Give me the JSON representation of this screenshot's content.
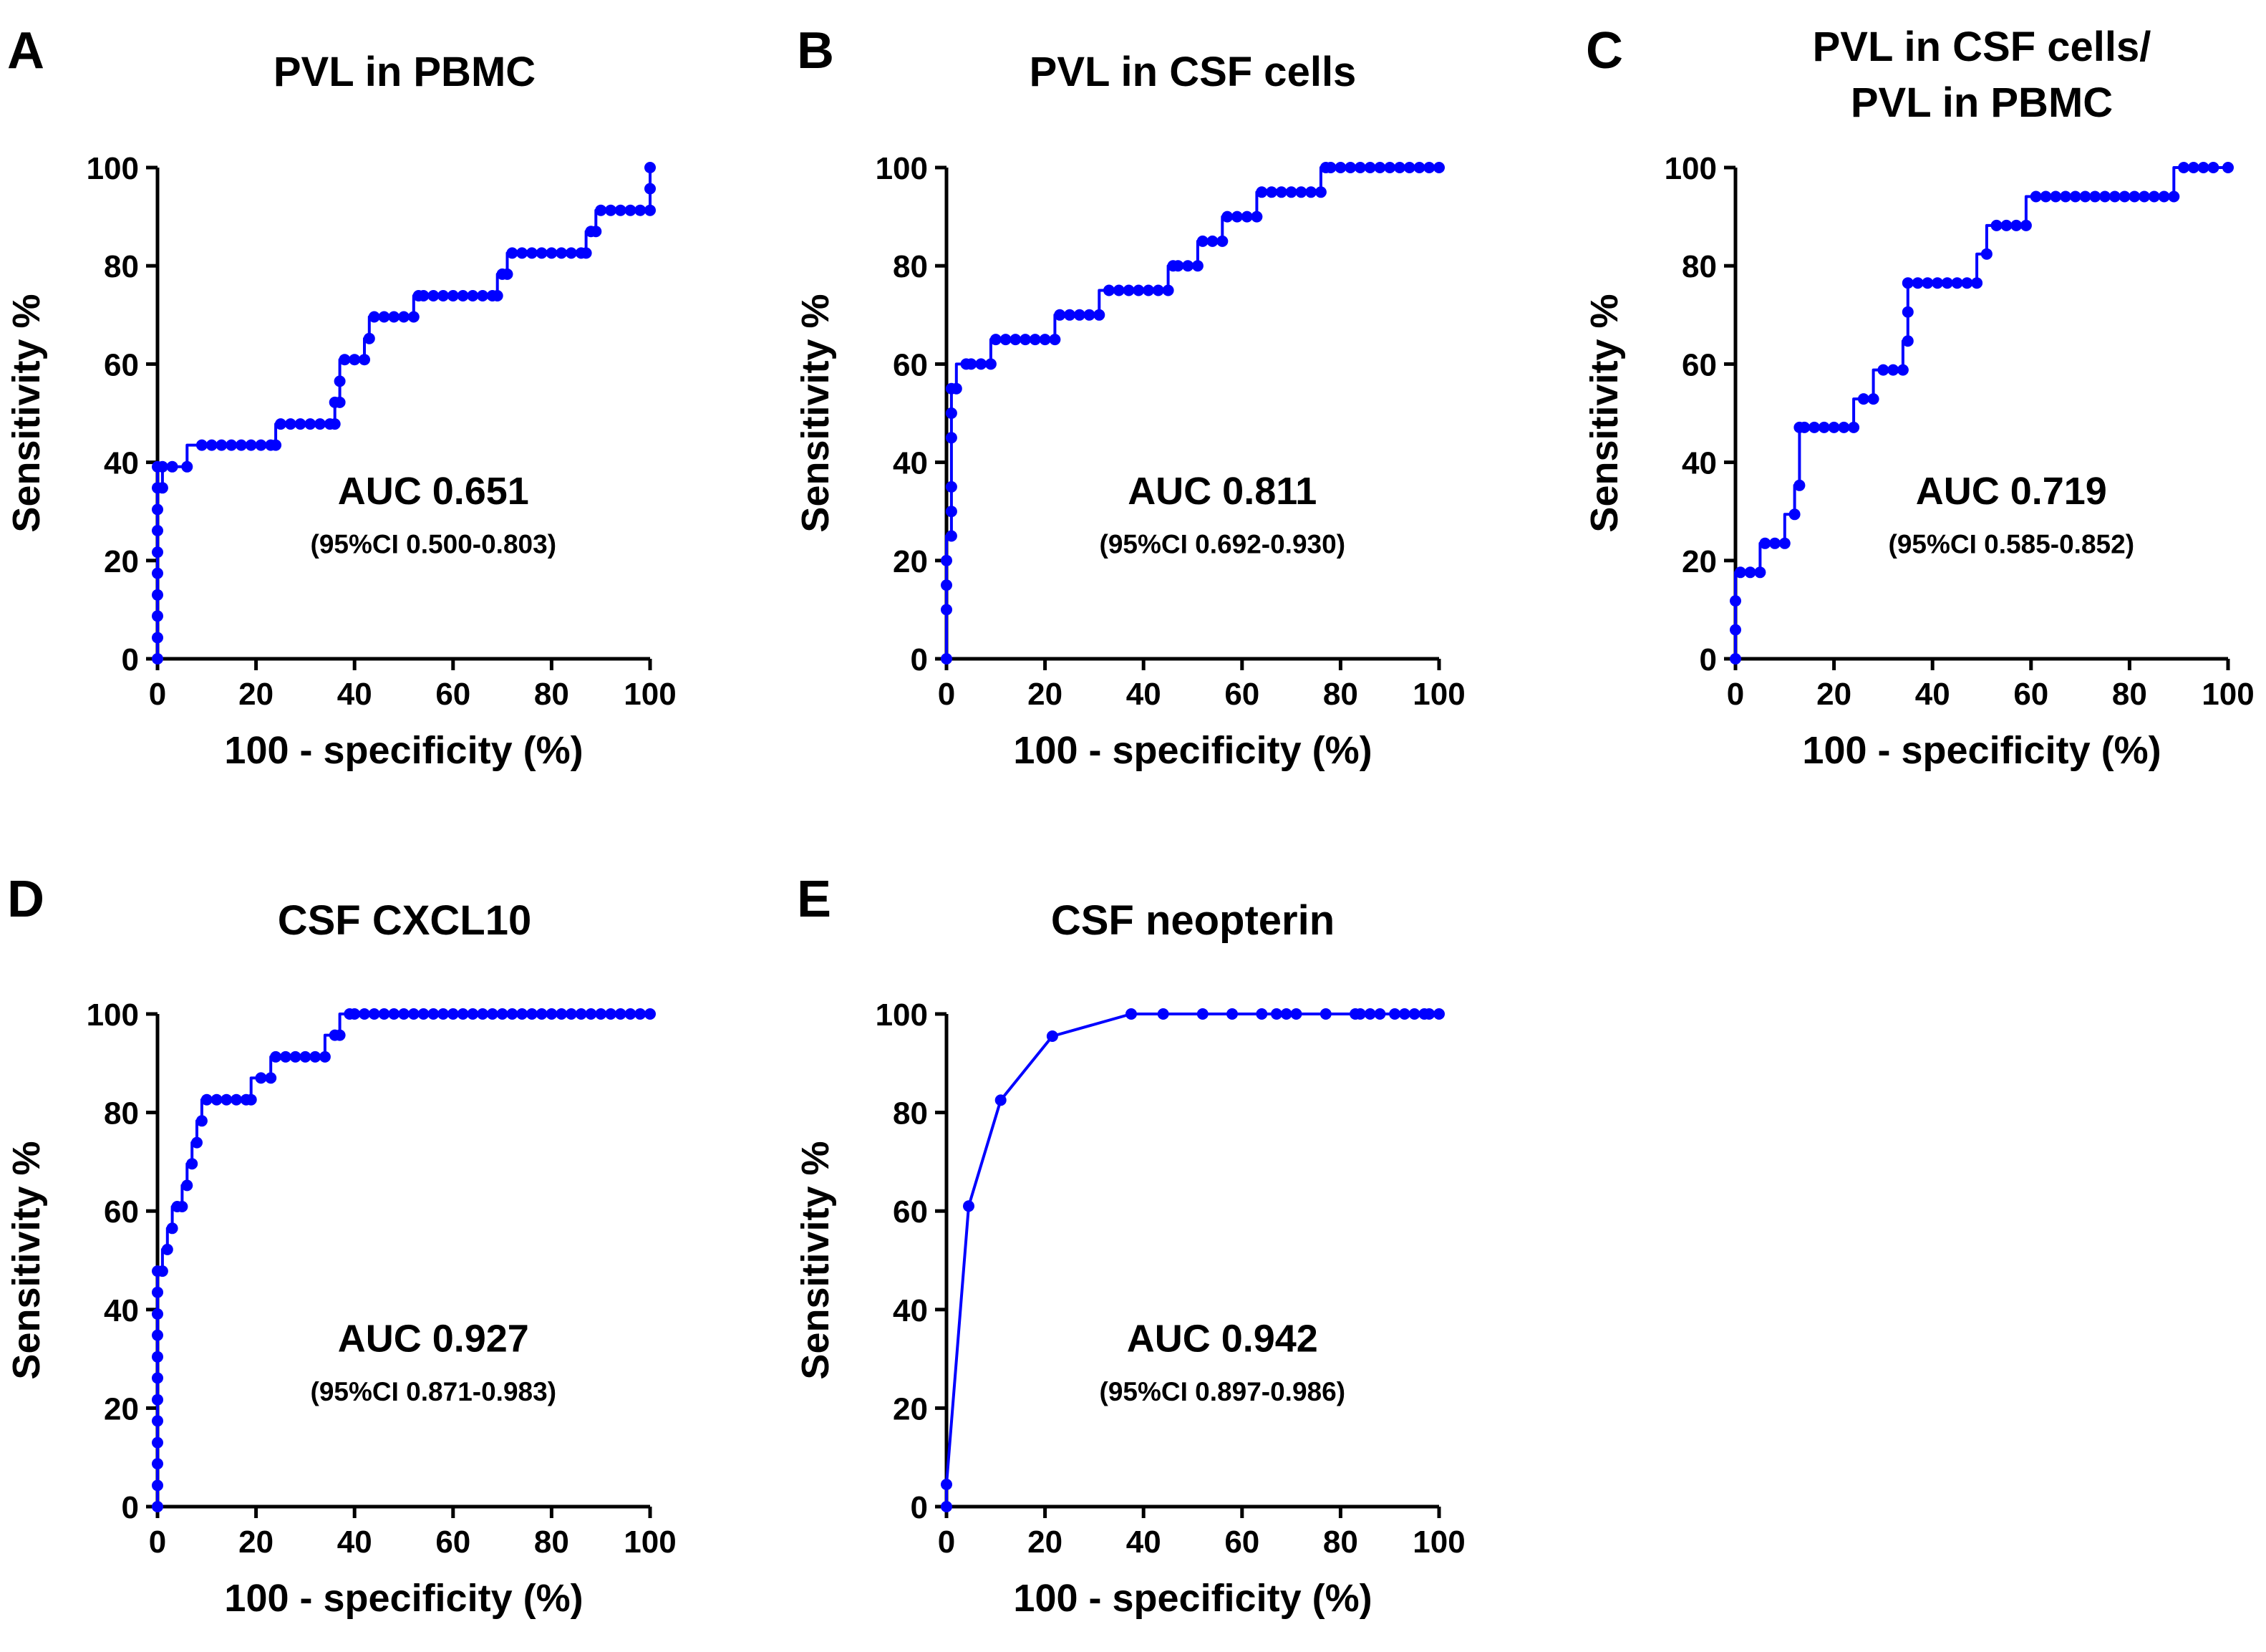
{
  "figure": {
    "series_color": "#0000ff"
  },
  "chart_data": [
    {
      "panel": "A",
      "type": "line",
      "title_lines": [
        "PVL in PBMC"
      ],
      "xlabel": "100 - specificity (%)",
      "ylabel": "Sensitivity %",
      "xlim": [
        0,
        100
      ],
      "ylim": [
        0,
        100
      ],
      "xticks": [
        0,
        20,
        40,
        60,
        80,
        100
      ],
      "yticks": [
        0,
        20,
        40,
        60,
        80,
        100
      ],
      "auc": "AUC 0.651",
      "ci": "(95%CI 0.500-0.803)",
      "series": [
        {
          "name": "ROC",
          "style": "step",
          "x": [
            0,
            0,
            0,
            0,
            0,
            0,
            0,
            0,
            0,
            0,
            1,
            1,
            3,
            6,
            9,
            11,
            13,
            15,
            17,
            19,
            21,
            23,
            24,
            25,
            27,
            29,
            31,
            33,
            35,
            36,
            36,
            37,
            37,
            38,
            40,
            42,
            43,
            44,
            46,
            48,
            50,
            52,
            53,
            54,
            56,
            58,
            60,
            62,
            64,
            66,
            68,
            69,
            70,
            71,
            72,
            74,
            76,
            78,
            80,
            82,
            84,
            86,
            87,
            88,
            89,
            90,
            92,
            94,
            96,
            98,
            100,
            100,
            100
          ],
          "y": [
            0,
            4.3,
            8.7,
            13,
            17.4,
            21.7,
            26.1,
            30.4,
            34.8,
            39.1,
            34.8,
            39.1,
            39.1,
            39.1,
            43.5,
            43.5,
            43.5,
            43.5,
            43.5,
            43.5,
            43.5,
            43.5,
            43.5,
            47.8,
            47.8,
            47.8,
            47.8,
            47.8,
            47.8,
            47.8,
            52.2,
            52.2,
            56.5,
            60.9,
            60.9,
            60.9,
            65.2,
            69.6,
            69.6,
            69.6,
            69.6,
            69.6,
            73.9,
            73.9,
            73.9,
            73.9,
            73.9,
            73.9,
            73.9,
            73.9,
            73.9,
            73.9,
            78.3,
            78.3,
            82.6,
            82.6,
            82.6,
            82.6,
            82.6,
            82.6,
            82.6,
            82.6,
            82.6,
            87,
            87,
            91.3,
            91.3,
            91.3,
            91.3,
            91.3,
            91.3,
            95.7,
            100
          ]
        }
      ]
    },
    {
      "panel": "B",
      "type": "line",
      "title_lines": [
        "PVL in CSF cells"
      ],
      "xlabel": "100 - specificity (%)",
      "ylabel": "Sensitivity %",
      "xlim": [
        0,
        100
      ],
      "ylim": [
        0,
        100
      ],
      "xticks": [
        0,
        20,
        40,
        60,
        80,
        100
      ],
      "yticks": [
        0,
        20,
        40,
        60,
        80,
        100
      ],
      "auc": "AUC 0.811",
      "ci": "(95%CI 0.692-0.930)",
      "series": [
        {
          "name": "ROC",
          "style": "step",
          "x": [
            0,
            0,
            0,
            0,
            1,
            1,
            1,
            1,
            1,
            1,
            2,
            4,
            5,
            7,
            9,
            10,
            12,
            14,
            16,
            18,
            20,
            22,
            23,
            25,
            27,
            29,
            31,
            33,
            35,
            37,
            39,
            41,
            43,
            45,
            46,
            47,
            49,
            51,
            52,
            54,
            56,
            57,
            59,
            61,
            63,
            64,
            66,
            68,
            70,
            72,
            74,
            76,
            77,
            78,
            80,
            82,
            84,
            86,
            88,
            90,
            92,
            94,
            96,
            98,
            100
          ],
          "y": [
            0,
            10,
            15,
            20,
            25,
            30,
            35,
            45,
            50,
            55,
            55,
            60,
            60,
            60,
            60,
            65,
            65,
            65,
            65,
            65,
            65,
            65,
            70,
            70,
            70,
            70,
            70,
            75,
            75,
            75,
            75,
            75,
            75,
            75,
            80,
            80,
            80,
            80,
            85,
            85,
            85,
            90,
            90,
            90,
            90,
            95,
            95,
            95,
            95,
            95,
            95,
            95,
            100,
            100,
            100,
            100,
            100,
            100,
            100,
            100,
            100,
            100,
            100,
            100,
            100
          ]
        }
      ]
    },
    {
      "panel": "C",
      "type": "line",
      "title_lines": [
        "PVL in CSF cells/",
        "PVL in PBMC"
      ],
      "xlabel": "100 - specificity (%)",
      "ylabel": "Sensitivity %",
      "xlim": [
        0,
        100
      ],
      "ylim": [
        0,
        100
      ],
      "xticks": [
        0,
        20,
        40,
        60,
        80,
        100
      ],
      "yticks": [
        0,
        20,
        40,
        60,
        80,
        100
      ],
      "auc": "AUC 0.719",
      "ci": "(95%CI 0.585-0.852)",
      "series": [
        {
          "name": "ROC",
          "style": "step",
          "x": [
            0,
            0,
            0,
            1,
            3,
            5,
            6,
            8,
            10,
            12,
            13,
            13,
            14,
            16,
            18,
            20,
            22,
            24,
            26,
            28,
            30,
            32,
            34,
            35,
            35,
            35,
            37,
            39,
            41,
            43,
            45,
            47,
            49,
            51,
            53,
            55,
            57,
            59,
            61,
            63,
            65,
            67,
            69,
            71,
            73,
            75,
            77,
            79,
            81,
            83,
            85,
            87,
            89,
            91,
            93,
            95,
            97,
            100
          ],
          "y": [
            0,
            5.9,
            11.8,
            17.6,
            17.6,
            17.6,
            23.5,
            23.5,
            23.5,
            29.4,
            35.3,
            47.1,
            47.1,
            47.1,
            47.1,
            47.1,
            47.1,
            47.1,
            52.9,
            52.9,
            58.8,
            58.8,
            58.8,
            64.7,
            70.6,
            76.5,
            76.5,
            76.5,
            76.5,
            76.5,
            76.5,
            76.5,
            76.5,
            82.4,
            88.2,
            88.2,
            88.2,
            88.2,
            94.1,
            94.1,
            94.1,
            94.1,
            94.1,
            94.1,
            94.1,
            94.1,
            94.1,
            94.1,
            94.1,
            94.1,
            94.1,
            94.1,
            94.1,
            100,
            100,
            100,
            100,
            100
          ]
        }
      ]
    },
    {
      "panel": "D",
      "type": "line",
      "title_lines": [
        "CSF CXCL10"
      ],
      "xlabel": "100 - specificity (%)",
      "ylabel": "Sensitivity %",
      "xlim": [
        0,
        100
      ],
      "ylim": [
        0,
        100
      ],
      "xticks": [
        0,
        20,
        40,
        60,
        80,
        100
      ],
      "yticks": [
        0,
        20,
        40,
        60,
        80,
        100
      ],
      "auc": "AUC 0.927",
      "ci": "(95%CI 0.871-0.983)",
      "series": [
        {
          "name": "ROC",
          "style": "step",
          "x": [
            0,
            0,
            0,
            0,
            0,
            0,
            0,
            0,
            0,
            0,
            0,
            0,
            1,
            2,
            3,
            4,
            5,
            6,
            7,
            8,
            9,
            10,
            12,
            14,
            16,
            18,
            19,
            21,
            23,
            24,
            26,
            28,
            30,
            32,
            34,
            36,
            37,
            39,
            40,
            42,
            44,
            46,
            48,
            50,
            52,
            54,
            56,
            58,
            60,
            62,
            64,
            66,
            68,
            70,
            72,
            74,
            76,
            78,
            80,
            82,
            84,
            86,
            88,
            90,
            92,
            94,
            96,
            98,
            100
          ],
          "y": [
            0,
            4.3,
            8.7,
            13,
            17.4,
            21.7,
            26.1,
            30.4,
            34.8,
            39.1,
            43.5,
            47.8,
            47.8,
            52.2,
            56.5,
            60.9,
            60.9,
            65.2,
            69.6,
            73.9,
            78.3,
            82.6,
            82.6,
            82.6,
            82.6,
            82.6,
            82.6,
            87,
            87,
            91.3,
            91.3,
            91.3,
            91.3,
            91.3,
            91.3,
            95.7,
            95.7,
            100,
            100,
            100,
            100,
            100,
            100,
            100,
            100,
            100,
            100,
            100,
            100,
            100,
            100,
            100,
            100,
            100,
            100,
            100,
            100,
            100,
            100,
            100,
            100,
            100,
            100,
            100,
            100,
            100,
            100,
            100,
            100
          ]
        }
      ]
    },
    {
      "panel": "E",
      "type": "line",
      "title_lines": [
        "CSF neopterin"
      ],
      "xlabel": "100 - specificity (%)",
      "ylabel": "Sensitivity %",
      "xlim": [
        0,
        100
      ],
      "ylim": [
        0,
        100
      ],
      "xticks": [
        0,
        20,
        40,
        60,
        80,
        100
      ],
      "yticks": [
        0,
        20,
        40,
        60,
        80,
        100
      ],
      "auc": "AUC 0.942",
      "ci": "(95%CI 0.897-0.986)",
      "series": [
        {
          "name": "ROC",
          "style": "line",
          "x": [
            0,
            0,
            4.5,
            11,
            21.5,
            37.5,
            44,
            52,
            58,
            64,
            67,
            69,
            71,
            77,
            83,
            84,
            86,
            88,
            91,
            93,
            95,
            97,
            98,
            100
          ],
          "y": [
            0,
            4.5,
            61,
            82.5,
            95.5,
            100,
            100,
            100,
            100,
            100,
            100,
            100,
            100,
            100,
            100,
            100,
            100,
            100,
            100,
            100,
            100,
            100,
            100,
            100
          ]
        }
      ]
    }
  ]
}
